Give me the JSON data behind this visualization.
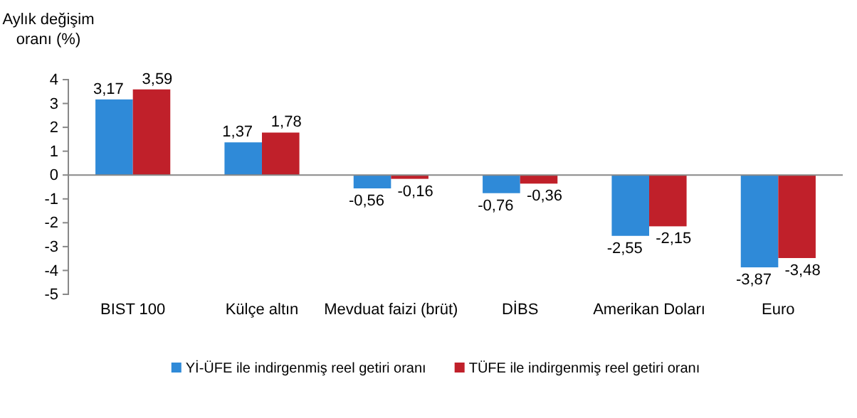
{
  "chart_data": {
    "type": "bar",
    "ylabel": "Aylık değişim oranı (%)",
    "categories": [
      "BIST 100",
      "Külçe altın",
      "Mevduat faizi (brüt)",
      "DİBS",
      "Amerikan Doları",
      "Euro"
    ],
    "series": [
      {
        "name": "Yİ-ÜFE ile indirgenmiş reel getiri oranı",
        "color": "#2f8ad8",
        "values": [
          3.17,
          1.37,
          -0.56,
          -0.76,
          -2.55,
          -3.87
        ],
        "value_labels": [
          "3,17",
          "1,37",
          "-0,56",
          "-0,76",
          "-2,55",
          "-3,87"
        ]
      },
      {
        "name": "TÜFE ile indirgenmiş reel getiri oranı",
        "color": "#c0202a",
        "values": [
          3.59,
          1.78,
          -0.16,
          -0.36,
          -2.15,
          -3.48
        ],
        "value_labels": [
          "3,59",
          "1,78",
          "-0,16",
          "-0,36",
          "-2,15",
          "-3,48"
        ]
      }
    ],
    "ylim": [
      -5,
      4
    ],
    "yticks": [
      -5,
      -4,
      -3,
      -2,
      -1,
      0,
      1,
      2,
      3,
      4
    ],
    "legend": "bottom"
  }
}
